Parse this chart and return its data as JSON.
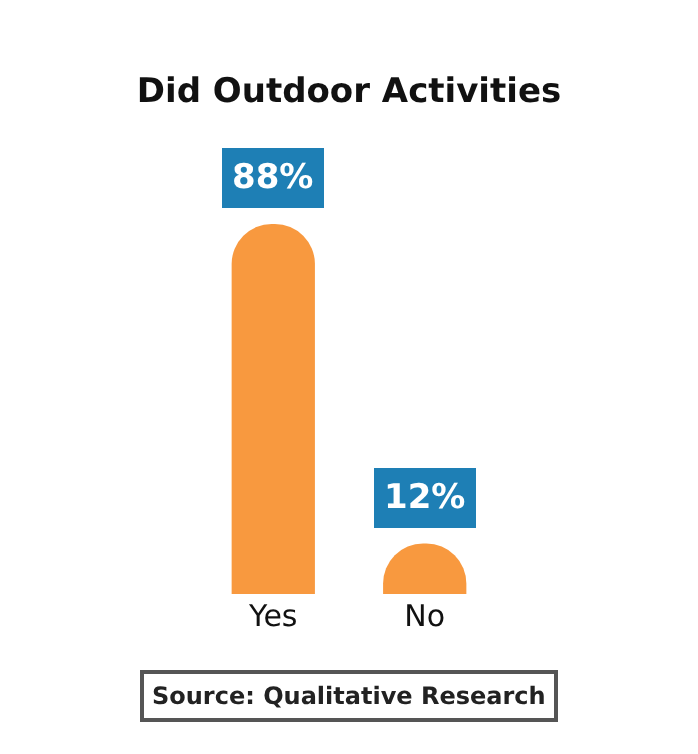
{
  "chart_data": {
    "type": "bar",
    "title": "Did Outdoor Activities",
    "categories": [
      "Yes",
      "No"
    ],
    "values": [
      88,
      12
    ],
    "color": "#f8993f",
    "value_labels": [
      "88%",
      "12%"
    ],
    "annotations": [
      "Source: Qualitative Research"
    ],
    "tick_labels": "x"
  }
}
